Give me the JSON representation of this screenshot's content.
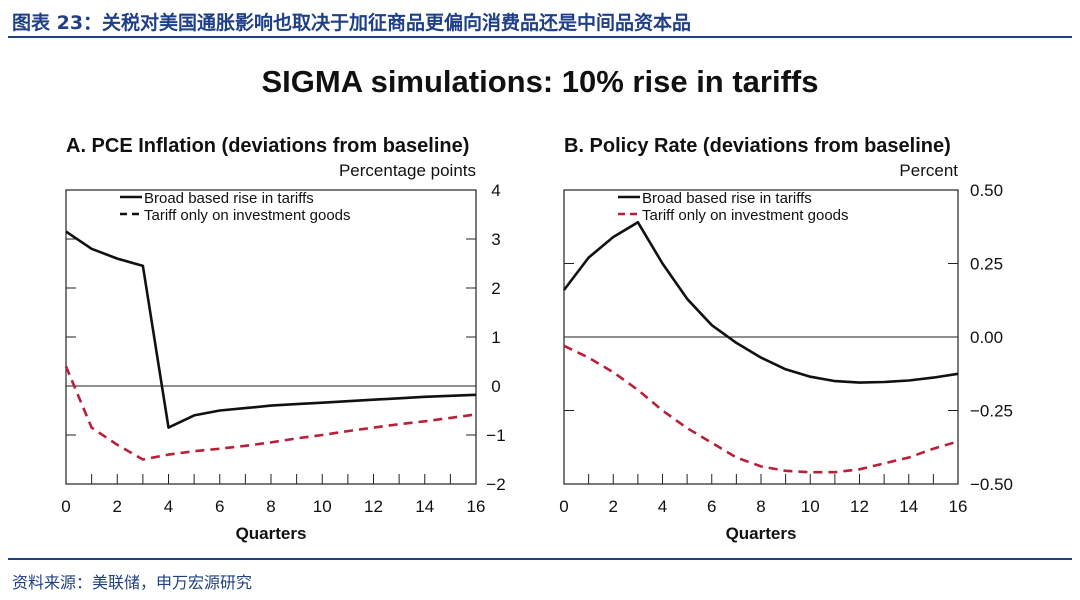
{
  "header": {
    "figure_title": "图表 23：关税对美国通胀影响也取决于加征商品更偏向消费品还是中间品资本品",
    "main_title": "SIGMA simulations: 10% rise in tariffs"
  },
  "footer": {
    "source": "资料来源：美联储，申万宏源研究"
  },
  "colors": {
    "brand": "#1f3f86",
    "broad_line": "#111111",
    "invest_line": "#b8203a"
  },
  "chart_data": [
    {
      "id": "A",
      "type": "line",
      "title": "A. PCE Inflation (deviations from baseline)",
      "ylabel": "Percentage points",
      "xlabel": "Quarters",
      "xlim": [
        0,
        16
      ],
      "ylim": [
        -2,
        4
      ],
      "x_ticks": [
        0,
        2,
        4,
        6,
        8,
        10,
        12,
        14,
        16
      ],
      "x_tick_labels": [
        "0",
        "2",
        "4",
        "6",
        "8",
        "10",
        "12",
        "14",
        "16"
      ],
      "y_ticks": [
        4,
        3,
        2,
        1,
        0,
        -1,
        -2
      ],
      "y_tick_labels": [
        "4",
        "3",
        "2",
        "1",
        "0",
        "−1",
        "−2"
      ],
      "legend": [
        "Broad based rise in tariffs",
        "Tariff only on investment goods"
      ],
      "series": [
        {
          "name": "Broad based rise in tariffs",
          "style": "solid",
          "x": [
            0,
            1,
            2,
            3,
            4,
            5,
            6,
            7,
            8,
            9,
            10,
            11,
            12,
            13,
            14,
            15,
            16
          ],
          "values": [
            3.15,
            2.8,
            2.6,
            2.45,
            -0.85,
            -0.6,
            -0.5,
            -0.45,
            -0.4,
            -0.37,
            -0.34,
            -0.31,
            -0.28,
            -0.25,
            -0.22,
            -0.2,
            -0.18
          ]
        },
        {
          "name": "Tariff only on investment goods",
          "style": "dashed",
          "x": [
            0,
            1,
            2,
            3,
            4,
            5,
            6,
            7,
            8,
            9,
            10,
            11,
            12,
            13,
            14,
            15,
            16
          ],
          "values": [
            0.4,
            -0.85,
            -1.2,
            -1.5,
            -1.4,
            -1.33,
            -1.28,
            -1.22,
            -1.15,
            -1.07,
            -1.0,
            -0.92,
            -0.85,
            -0.78,
            -0.72,
            -0.65,
            -0.58
          ]
        }
      ]
    },
    {
      "id": "B",
      "type": "line",
      "title": "B. Policy Rate (deviations from baseline)",
      "ylabel": "Percent",
      "xlabel": "Quarters",
      "xlim": [
        0,
        16
      ],
      "ylim": [
        -0.5,
        0.5
      ],
      "x_ticks": [
        0,
        2,
        4,
        6,
        8,
        10,
        12,
        14,
        16
      ],
      "x_tick_labels": [
        "0",
        "2",
        "4",
        "6",
        "8",
        "10",
        "12",
        "14",
        "16"
      ],
      "y_ticks": [
        0.5,
        0.25,
        0,
        -0.25,
        -0.5
      ],
      "y_tick_labels": [
        "0.50",
        "0.25",
        "0.00",
        "−0.25",
        "−0.50"
      ],
      "legend": [
        "Broad based rise in tariffs",
        "Tariff only on investment goods"
      ],
      "series": [
        {
          "name": "Broad based rise in tariffs",
          "style": "solid",
          "x": [
            0,
            1,
            2,
            3,
            4,
            5,
            6,
            7,
            8,
            9,
            10,
            11,
            12,
            13,
            14,
            15,
            16
          ],
          "values": [
            0.16,
            0.27,
            0.34,
            0.39,
            0.25,
            0.13,
            0.04,
            -0.02,
            -0.07,
            -0.11,
            -0.135,
            -0.15,
            -0.155,
            -0.153,
            -0.148,
            -0.138,
            -0.125
          ]
        },
        {
          "name": "Tariff only on investment goods",
          "style": "dashed",
          "x": [
            0,
            1,
            2,
            3,
            4,
            5,
            6,
            7,
            8,
            9,
            10,
            11,
            12,
            13,
            14,
            15,
            16
          ],
          "values": [
            -0.03,
            -0.07,
            -0.12,
            -0.18,
            -0.25,
            -0.31,
            -0.36,
            -0.41,
            -0.44,
            -0.455,
            -0.46,
            -0.46,
            -0.45,
            -0.43,
            -0.41,
            -0.38,
            -0.355
          ]
        }
      ]
    }
  ]
}
